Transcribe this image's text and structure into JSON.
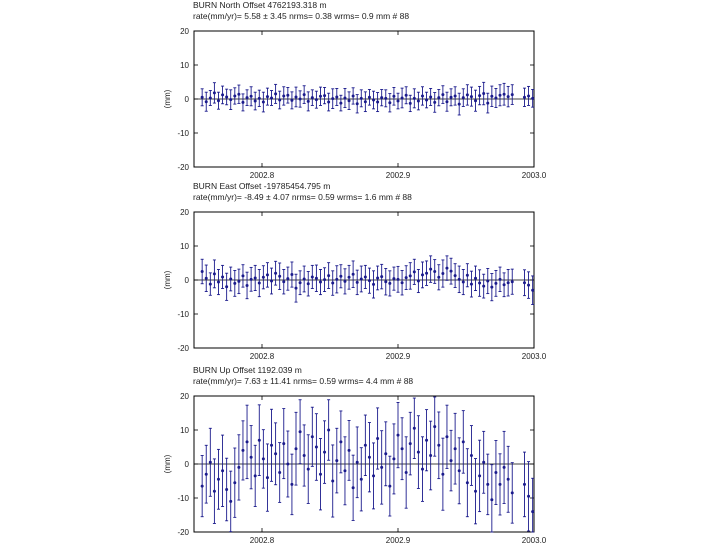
{
  "chart_data": [
    {
      "type": "scatter",
      "title": "BURN North Offset 4762193.318 m",
      "stats": "rate(mm/yr)= 5.58 ± 3.45 nrms= 0.38 wrms= 0.9 mm # 88",
      "ylabel": "(mm)",
      "ylim": [
        -20,
        20
      ],
      "yticks": [
        "20",
        "10",
        "0",
        "-10",
        "-20"
      ],
      "xlim": [
        2002.75,
        2003.0
      ],
      "xticks": [
        "2002.8",
        "2002.9",
        "2003.0"
      ],
      "color": "#1a1a8c",
      "x": [
        2002.756,
        2002.759,
        2002.762,
        2002.765,
        2002.768,
        2002.771,
        2002.774,
        2002.777,
        2002.78,
        2002.783,
        2002.786,
        2002.789,
        2002.792,
        2002.795,
        2002.798,
        2002.801,
        2002.804,
        2002.807,
        2002.81,
        2002.813,
        2002.816,
        2002.819,
        2002.822,
        2002.825,
        2002.828,
        2002.831,
        2002.834,
        2002.837,
        2002.84,
        2002.843,
        2002.846,
        2002.849,
        2002.852,
        2002.855,
        2002.858,
        2002.861,
        2002.864,
        2002.867,
        2002.87,
        2002.873,
        2002.876,
        2002.879,
        2002.882,
        2002.885,
        2002.888,
        2002.891,
        2002.894,
        2002.897,
        2002.9,
        2002.903,
        2002.906,
        2002.909,
        2002.912,
        2002.915,
        2002.918,
        2002.921,
        2002.924,
        2002.927,
        2002.93,
        2002.933,
        2002.936,
        2002.939,
        2002.942,
        2002.945,
        2002.948,
        2002.951,
        2002.954,
        2002.957,
        2002.96,
        2002.963,
        2002.966,
        2002.969,
        2002.972,
        2002.975,
        2002.978,
        2002.981,
        2002.984,
        2002.993,
        2002.996,
        2002.999
      ],
      "y": [
        0.5,
        -0.8,
        0.3,
        1.8,
        -0.5,
        1.2,
        0.6,
        -0.2,
        0.9,
        1.4,
        -1.0,
        0.4,
        0.8,
        -0.6,
        0.2,
        -0.9,
        0.7,
        0.3,
        1.5,
        -0.3,
        0.9,
        1.1,
        -0.4,
        0.6,
        0.0,
        1.3,
        -0.7,
        0.4,
        -0.2,
        0.8,
        1.0,
        -0.9,
        0.1,
        0.6,
        -1.2,
        0.3,
        -0.5,
        0.9,
        -1.4,
        0.2,
        -0.8,
        0.5,
        -0.3,
        -0.9,
        0.4,
        0.2,
        -1.1,
        0.8,
        -0.6,
        0.3,
        1.1,
        -1.3,
        0.2,
        -0.6,
        0.9,
        -0.3,
        0.6,
        -1.0,
        0.4,
        1.3,
        -0.8,
        0.5,
        0.9,
        -1.5,
        0.4,
        1.2,
        0.7,
        -0.5,
        1.0,
        1.6,
        -1.2,
        0.8,
        0.3,
        1.1,
        1.4,
        0.7,
        1.3,
        0.5,
        0.9,
        0.2
      ],
      "err": [
        2.5,
        2.8,
        2.2,
        3.0,
        2.5,
        2.6,
        2.3,
        2.9,
        2.4,
        2.7,
        2.5,
        2.3,
        2.8,
        2.6,
        2.4,
        2.9,
        2.5,
        2.2,
        2.8,
        2.6,
        2.7,
        2.3,
        2.5,
        2.9,
        2.4,
        2.6,
        2.8,
        2.3,
        2.5,
        2.7,
        2.4,
        2.6,
        2.9,
        2.5,
        2.3,
        2.8,
        2.6,
        2.4,
        2.7,
        2.5,
        2.9,
        2.3,
        2.6,
        2.8,
        2.4,
        2.5,
        2.7,
        2.6,
        2.3,
        2.9,
        2.5,
        2.4,
        2.8,
        2.6,
        2.7,
        2.3,
        2.5,
        2.9,
        2.4,
        2.6,
        2.8,
        2.5,
        2.7,
        3.2,
        2.6,
        3.0,
        2.8,
        3.1,
        2.7,
        3.3,
        2.9,
        3.0,
        2.8,
        3.1,
        3.2,
        3.0,
        2.9,
        2.7,
        2.8,
        2.6
      ]
    },
    {
      "type": "scatter",
      "title": "BURN East Offset -19785454.795 m",
      "stats": "rate(mm/yr)= -8.49 ± 4.07 nrms= 0.59 wrms= 1.6 mm # 88",
      "ylabel": "(mm)",
      "ylim": [
        -20,
        20
      ],
      "yticks": [
        "20",
        "10",
        "0",
        "-10",
        "-20"
      ],
      "xlim": [
        2002.75,
        2003.0
      ],
      "xticks": [
        "2002.8",
        "2002.9",
        "2003.0"
      ],
      "color": "#1a1a8c",
      "x": [
        2002.756,
        2002.759,
        2002.762,
        2002.765,
        2002.768,
        2002.771,
        2002.774,
        2002.777,
        2002.78,
        2002.783,
        2002.786,
        2002.789,
        2002.792,
        2002.795,
        2002.798,
        2002.801,
        2002.804,
        2002.807,
        2002.81,
        2002.813,
        2002.816,
        2002.819,
        2002.822,
        2002.825,
        2002.828,
        2002.831,
        2002.834,
        2002.837,
        2002.84,
        2002.843,
        2002.846,
        2002.849,
        2002.852,
        2002.855,
        2002.858,
        2002.861,
        2002.864,
        2002.867,
        2002.87,
        2002.873,
        2002.876,
        2002.879,
        2002.882,
        2002.885,
        2002.888,
        2002.891,
        2002.894,
        2002.897,
        2002.9,
        2002.903,
        2002.906,
        2002.909,
        2002.912,
        2002.915,
        2002.918,
        2002.921,
        2002.924,
        2002.927,
        2002.93,
        2002.933,
        2002.936,
        2002.939,
        2002.942,
        2002.945,
        2002.948,
        2002.951,
        2002.954,
        2002.957,
        2002.96,
        2002.963,
        2002.966,
        2002.969,
        2002.972,
        2002.975,
        2002.978,
        2002.981,
        2002.984,
        2002.993,
        2002.996,
        2002.999
      ],
      "y": [
        2.5,
        0.5,
        -1.2,
        1.8,
        -0.6,
        0.9,
        -2.0,
        0.3,
        -1.0,
        -0.4,
        1.2,
        -1.6,
        0.2,
        0.6,
        -0.9,
        0.8,
        1.5,
        -0.3,
        2.0,
        1.1,
        -0.5,
        0.4,
        1.6,
        -2.4,
        -0.8,
        0.3,
        -1.1,
        0.9,
        0.5,
        -0.6,
        0.1,
        1.3,
        -0.9,
        0.2,
        1.1,
        -0.4,
        0.8,
        1.7,
        -0.7,
        0.3,
        0.9,
        -0.2,
        -1.3,
        0.6,
        1.0,
        -0.5,
        -1.0,
        0.4,
        0.2,
        -0.8,
        0.7,
        1.2,
        2.4,
        -0.3,
        1.5,
        2.0,
        3.2,
        2.5,
        0.8,
        1.9,
        3.5,
        2.6,
        1.3,
        0.2,
        -0.6,
        1.4,
        -1.2,
        0.5,
        -0.9,
        -1.8,
        -0.3,
        -2.1,
        -1.0,
        0.2,
        -1.4,
        -0.8,
        -0.5,
        -0.8,
        -1.5,
        -3.0
      ],
      "err": [
        3.6,
        3.9,
        3.3,
        4.1,
        3.7,
        3.4,
        4.0,
        3.5,
        3.8,
        3.6,
        3.3,
        3.9,
        3.5,
        3.7,
        4.0,
        3.4,
        3.6,
        3.8,
        3.5,
        3.9,
        3.6,
        3.4,
        3.7,
        4.1,
        3.5,
        3.8,
        3.6,
        3.4,
        3.9,
        3.7,
        3.5,
        3.8,
        3.6,
        4.0,
        3.4,
        3.7,
        3.5,
        3.9,
        3.6,
        3.8,
        3.4,
        3.7,
        4.0,
        3.5,
        3.6,
        3.9,
        3.7,
        3.4,
        3.8,
        3.6,
        3.5,
        3.9,
        3.7,
        3.4,
        3.8,
        3.6,
        3.9,
        3.5,
        3.7,
        4.0,
        3.6,
        3.8,
        3.5,
        3.9,
        3.7,
        3.4,
        3.8,
        3.6,
        3.9,
        3.5,
        3.7,
        4.0,
        3.8,
        3.6,
        3.5,
        3.9,
        3.7,
        3.8,
        3.9,
        4.2
      ]
    },
    {
      "type": "scatter",
      "title": "BURN Up Offset 1192.039 m",
      "stats": "rate(mm/yr)= 7.63 ± 11.41 nrms= 0.59 wrms= 4.4 mm # 88",
      "ylabel": "(mm)",
      "ylim": [
        -20,
        20
      ],
      "yticks": [
        "20",
        "10",
        "0",
        "-10",
        "-20"
      ],
      "xlim": [
        2002.75,
        2003.0
      ],
      "xticks": [
        "2002.8",
        "2002.9",
        "2003.0"
      ],
      "color": "#1a1a8c",
      "x": [
        2002.756,
        2002.759,
        2002.762,
        2002.765,
        2002.768,
        2002.771,
        2002.774,
        2002.777,
        2002.78,
        2002.783,
        2002.786,
        2002.789,
        2002.792,
        2002.795,
        2002.798,
        2002.801,
        2002.804,
        2002.807,
        2002.81,
        2002.813,
        2002.816,
        2002.819,
        2002.822,
        2002.825,
        2002.828,
        2002.831,
        2002.834,
        2002.837,
        2002.84,
        2002.843,
        2002.846,
        2002.849,
        2002.852,
        2002.855,
        2002.858,
        2002.861,
        2002.864,
        2002.867,
        2002.87,
        2002.873,
        2002.876,
        2002.879,
        2002.882,
        2002.885,
        2002.888,
        2002.891,
        2002.894,
        2002.897,
        2002.9,
        2002.903,
        2002.906,
        2002.909,
        2002.912,
        2002.915,
        2002.918,
        2002.921,
        2002.924,
        2002.927,
        2002.93,
        2002.933,
        2002.936,
        2002.939,
        2002.942,
        2002.945,
        2002.948,
        2002.951,
        2002.954,
        2002.957,
        2002.96,
        2002.963,
        2002.966,
        2002.969,
        2002.972,
        2002.975,
        2002.978,
        2002.981,
        2002.984,
        2002.993,
        2002.996,
        2002.999
      ],
      "y": [
        -6.5,
        -3.0,
        0.5,
        -8.0,
        -4.5,
        -2.0,
        -7.5,
        -11.0,
        -5.5,
        -1.0,
        4.0,
        6.5,
        2.0,
        -3.5,
        7.0,
        1.5,
        -4.0,
        5.5,
        3.0,
        -2.5,
        6.0,
        0.0,
        -6.0,
        4.5,
        9.5,
        2.5,
        -1.5,
        8.0,
        5.0,
        -3.0,
        3.5,
        10.0,
        -5.0,
        1.0,
        6.5,
        -2.0,
        4.0,
        -7.0,
        0.5,
        -4.5,
        5.5,
        2.0,
        -3.5,
        7.5,
        -1.0,
        3.0,
        -6.5,
        1.5,
        8.5,
        4.5,
        -2.5,
        6.0,
        10.5,
        3.5,
        -1.5,
        7.0,
        2.5,
        11.0,
        5.5,
        -3.0,
        8.0,
        1.0,
        4.5,
        -2.0,
        6.5,
        -5.5,
        2.5,
        -8.0,
        -3.5,
        0.5,
        -6.0,
        -10.5,
        -2.5,
        -6.0,
        -1.0,
        -4.5,
        -8.5,
        -6.0,
        -9.5,
        -14.0
      ],
      "err": [
        9.0,
        8.5,
        10.0,
        9.5,
        8.8,
        10.5,
        9.2,
        8.9,
        10.2,
        9.6,
        8.7,
        10.8,
        9.3,
        9.0,
        10.4,
        8.6,
        9.9,
        10.6,
        9.1,
        8.8,
        10.3,
        9.7,
        8.9,
        10.7,
        9.4,
        9.0,
        10.1,
        8.7,
        9.8,
        10.5,
        9.2,
        8.9,
        10.6,
        9.5,
        9.1,
        10.0,
        8.8,
        9.6,
        10.4,
        9.3,
        8.9,
        10.2,
        9.7,
        9.0,
        10.8,
        9.4,
        8.8,
        10.3,
        9.6,
        9.1,
        10.5,
        9.2,
        8.9,
        10.7,
        9.5,
        9.0,
        10.1,
        8.7,
        9.8,
        10.6,
        9.3,
        8.9,
        10.4,
        9.7,
        9.2,
        10.0,
        8.8,
        9.6,
        10.5,
        9.1,
        8.9,
        10.3,
        9.4,
        9.0,
        10.6,
        9.7,
        8.9,
        9.5,
        10.2,
        9.8
      ]
    }
  ]
}
